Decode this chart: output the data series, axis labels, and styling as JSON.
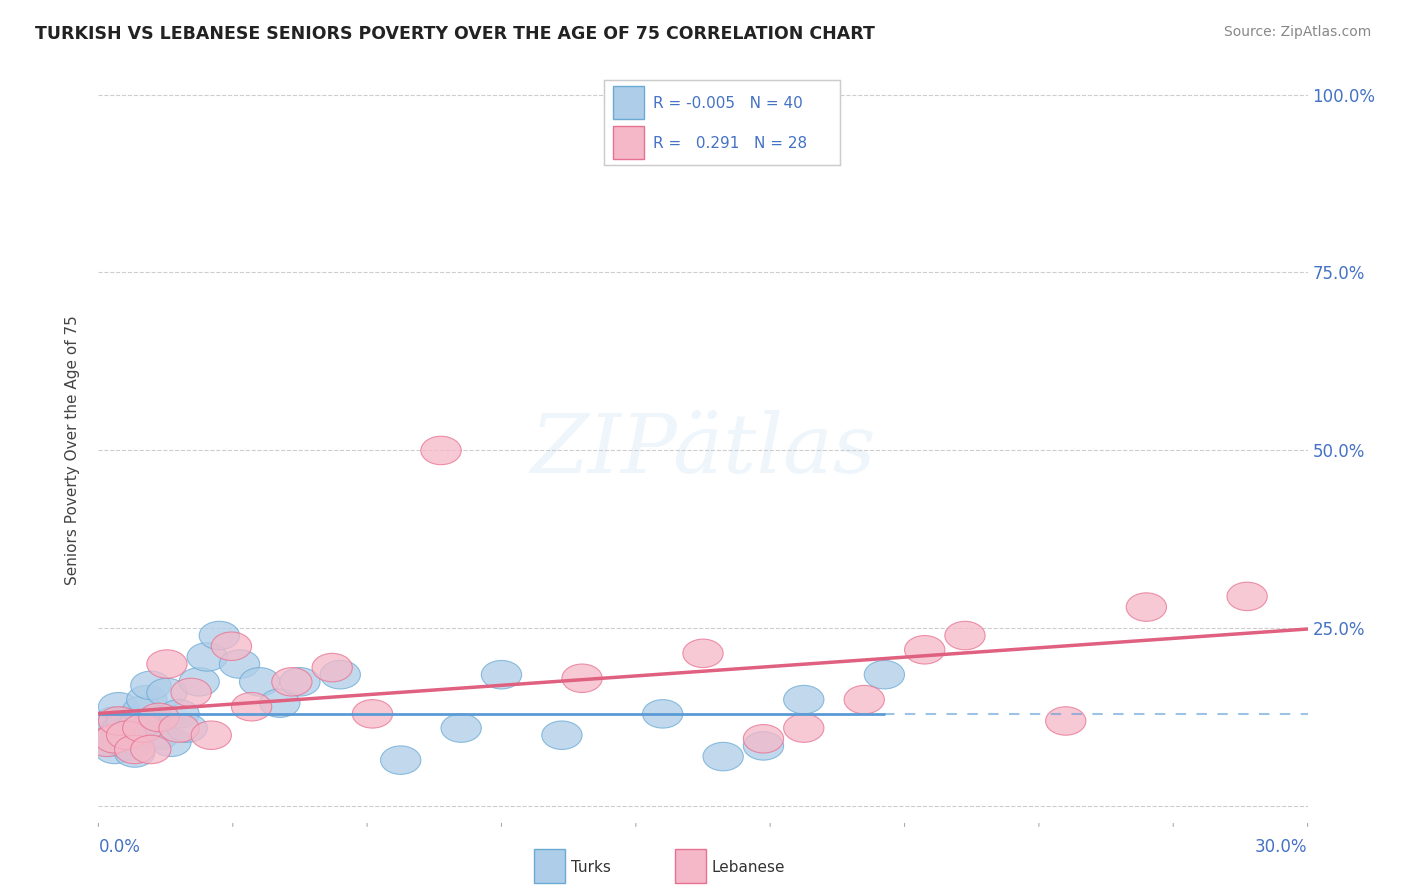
{
  "title": "TURKISH VS LEBANESE SENIORS POVERTY OVER THE AGE OF 75 CORRELATION CHART",
  "source": "Source: ZipAtlas.com",
  "ylabel": "Seniors Poverty Over the Age of 75",
  "xlim": [
    0.0,
    0.3
  ],
  "ylim": [
    -0.02,
    1.02
  ],
  "ytick_vals": [
    0.0,
    0.25,
    0.5,
    0.75,
    1.0
  ],
  "ytick_labels": [
    "",
    "25.0%",
    "50.0%",
    "75.0%",
    "100.0%"
  ],
  "legend_r_turks": "-0.005",
  "legend_n_turks": "40",
  "legend_r_lebanese": "0.291",
  "legend_n_lebanese": "28",
  "turks_color": "#aecde8",
  "lebanese_color": "#f4b8c8",
  "turks_edge_color": "#6aaad4",
  "lebanese_edge_color": "#e87090",
  "turks_line_color": "#5b9bd5",
  "lebanese_line_color": "#e06080",
  "label_color": "#4472c4",
  "grid_color": "#c8c8c8",
  "background_color": "#ffffff",
  "turks_x": [
    0.001,
    0.002,
    0.003,
    0.004,
    0.004,
    0.005,
    0.005,
    0.006,
    0.006,
    0.007,
    0.007,
    0.008,
    0.009,
    0.01,
    0.011,
    0.012,
    0.013,
    0.014,
    0.015,
    0.017,
    0.018,
    0.02,
    0.022,
    0.025,
    0.027,
    0.03,
    0.035,
    0.04,
    0.045,
    0.05,
    0.06,
    0.075,
    0.09,
    0.1,
    0.115,
    0.14,
    0.155,
    0.165,
    0.175,
    0.195
  ],
  "turks_y": [
    0.1,
    0.11,
    0.09,
    0.08,
    0.12,
    0.1,
    0.14,
    0.11,
    0.09,
    0.095,
    0.12,
    0.085,
    0.075,
    0.115,
    0.135,
    0.15,
    0.17,
    0.12,
    0.1,
    0.16,
    0.09,
    0.13,
    0.11,
    0.175,
    0.21,
    0.24,
    0.2,
    0.175,
    0.145,
    0.175,
    0.185,
    0.065,
    0.11,
    0.185,
    0.1,
    0.13,
    0.07,
    0.085,
    0.15,
    0.185
  ],
  "lebanese_x": [
    0.002,
    0.004,
    0.005,
    0.007,
    0.009,
    0.011,
    0.013,
    0.015,
    0.017,
    0.02,
    0.023,
    0.028,
    0.033,
    0.038,
    0.048,
    0.058,
    0.068,
    0.085,
    0.12,
    0.15,
    0.165,
    0.175,
    0.19,
    0.205,
    0.215,
    0.24,
    0.26,
    0.285
  ],
  "lebanese_y": [
    0.09,
    0.095,
    0.12,
    0.1,
    0.08,
    0.11,
    0.08,
    0.125,
    0.2,
    0.11,
    0.16,
    0.1,
    0.225,
    0.14,
    0.175,
    0.195,
    0.13,
    0.5,
    0.18,
    0.215,
    0.095,
    0.11,
    0.15,
    0.22,
    0.24,
    0.12,
    0.28,
    0.295
  ]
}
